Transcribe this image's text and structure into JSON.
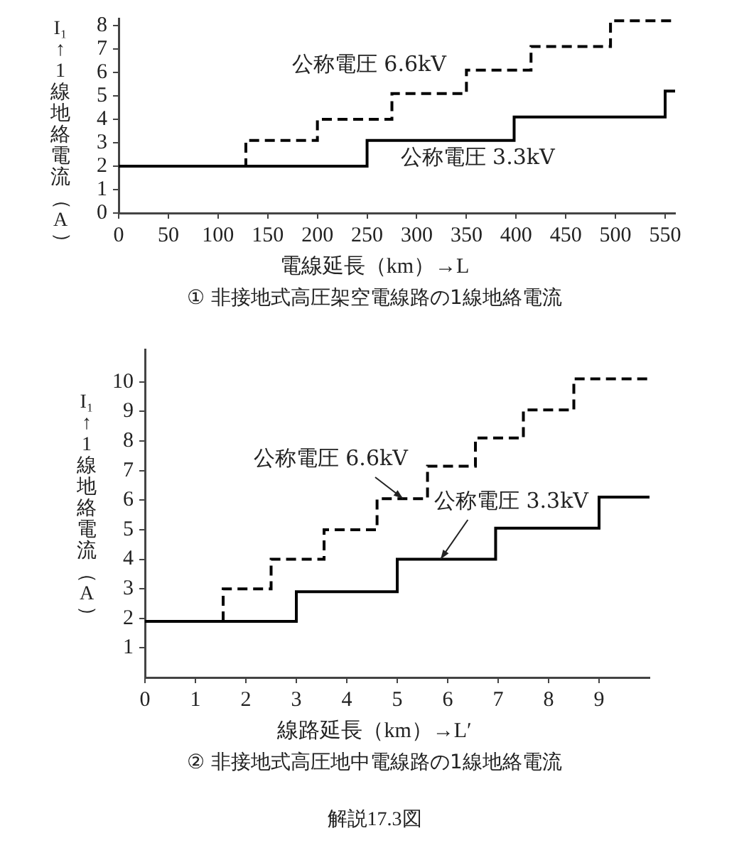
{
  "chart_data": [
    {
      "type": "step",
      "title": "① 非接地式高圧架空電線路の1線地絡電流",
      "xlabel": "電線延長（km）→L",
      "ylabel": "I₁↑1線地絡電流（A）",
      "xlim": [
        0,
        560
      ],
      "xticks": [
        0,
        50,
        100,
        150,
        200,
        250,
        300,
        350,
        400,
        450,
        500,
        550
      ],
      "ylim": [
        0,
        8.3
      ],
      "yticks": [
        0,
        1,
        2,
        3,
        4,
        5,
        6,
        7,
        8
      ],
      "grid": false,
      "legend": false,
      "marker": "none",
      "series": [
        {
          "color": "#000000",
          "line_style": "dashed",
          "x": [
            0,
            128,
            200,
            275,
            350,
            415,
            495,
            560
          ],
          "values": [
            2,
            3.1,
            4,
            5.1,
            6.1,
            7.1,
            8.2,
            8.2
          ]
        },
        {
          "color": "#000000",
          "line_style": "solid",
          "x": [
            0,
            250,
            398,
            550,
            560
          ],
          "values": [
            2,
            3.1,
            4.1,
            5.2,
            5.2
          ]
        }
      ],
      "annotations": [
        "公称電圧 6.6kV",
        "公称電圧 3.3kV"
      ]
    },
    {
      "type": "step",
      "title": "② 非接地式高圧地中電線路の1線地絡電流",
      "xlabel": "線路延長（km）→L′",
      "ylabel": "I₁↑1線地絡電流（A）",
      "xlim": [
        0,
        10
      ],
      "xticks": [
        0,
        1,
        2,
        3,
        4,
        5,
        6,
        7,
        8,
        9
      ],
      "ylim": [
        0,
        11.1
      ],
      "yticks": [
        1,
        2,
        3,
        4,
        5,
        6,
        7,
        8,
        9,
        10
      ],
      "grid": false,
      "legend": false,
      "marker": "none",
      "series": [
        {
          "color": "#000000",
          "line_style": "dashed",
          "x": [
            0,
            1.55,
            2.5,
            3.55,
            4.6,
            5.6,
            6.55,
            7.5,
            8.5,
            10
          ],
          "values": [
            1.9,
            3,
            4,
            5,
            6.05,
            7.15,
            8.1,
            9.05,
            10.1,
            10.1
          ]
        },
        {
          "color": "#000000",
          "line_style": "solid",
          "x": [
            0,
            3,
            5,
            6.95,
            9,
            10
          ],
          "values": [
            1.9,
            2.9,
            4,
            5.05,
            6.1,
            6.1
          ]
        }
      ],
      "annotations": [
        "公称電圧 6.6kV",
        "公称電圧 3.3kV",
        "解説17.3図"
      ]
    }
  ]
}
